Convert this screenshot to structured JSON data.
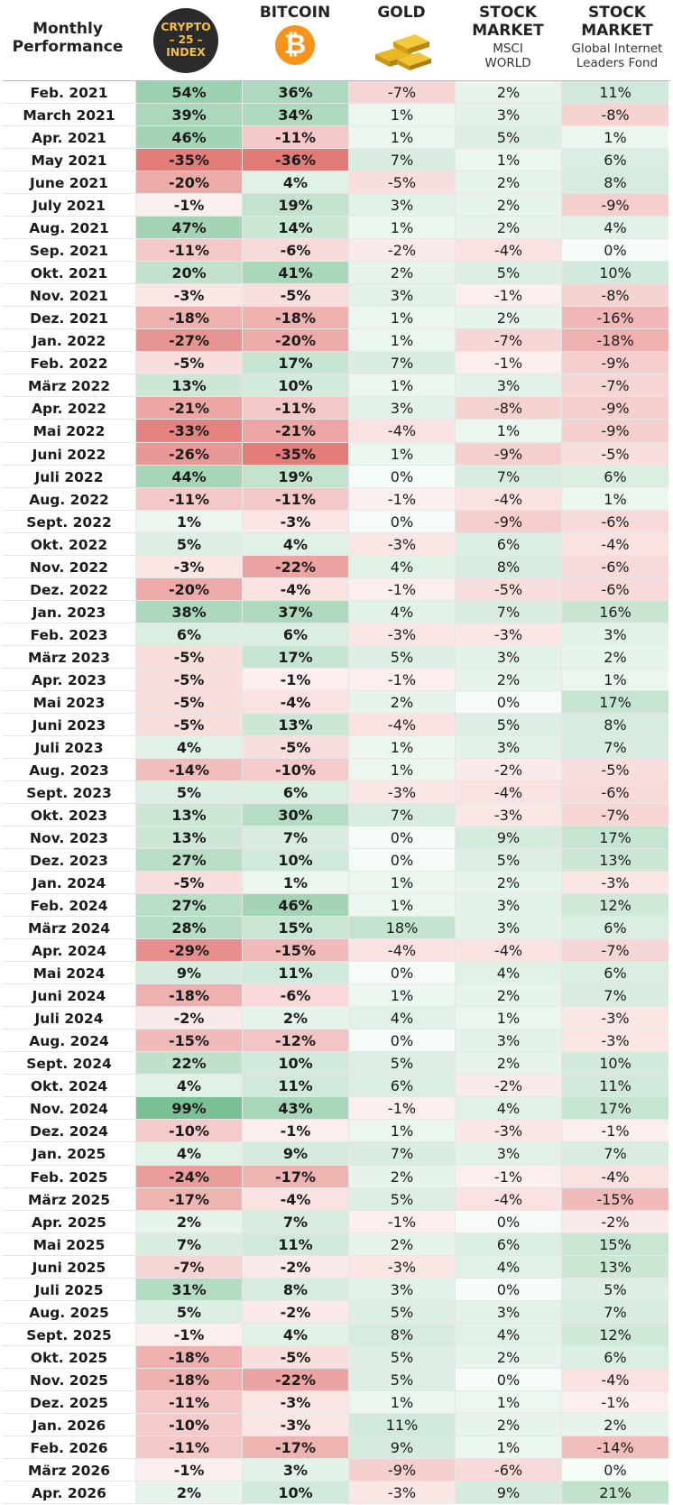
{
  "header": {
    "title_line1": "Monthly",
    "title_line2": "Performance",
    "col1": {
      "badge_top": "CRYPTO",
      "badge_mid": "25",
      "badge_bottom": "INDEX"
    },
    "col2": {
      "title": "BITCOIN"
    },
    "col3": {
      "title": "GOLD"
    },
    "col4": {
      "title1": "STOCK",
      "title2": "MARKET",
      "sub1": "MSCI",
      "sub2": "WORLD"
    },
    "col5": {
      "title1": "STOCK",
      "title2": "MARKET",
      "sub1": "Global Internet",
      "sub2": "Leaders Fond"
    }
  },
  "colors": {
    "positive": "#5fb47f",
    "negative": "#d9534f"
  },
  "chart_data": {
    "type": "table",
    "columns": [
      "Monthly Performance",
      "CRYPTO 25 INDEX",
      "BITCOIN",
      "GOLD",
      "STOCK MARKET MSCI WORLD",
      "STOCK MARKET Global Internet Leaders Fond"
    ],
    "rows": [
      [
        "Feb. 2021",
        54,
        36,
        -7,
        2,
        11
      ],
      [
        "March 2021",
        39,
        34,
        1,
        3,
        -8
      ],
      [
        "Apr. 2021",
        46,
        -11,
        1,
        5,
        1
      ],
      [
        "May 2021",
        -35,
        -36,
        7,
        1,
        6
      ],
      [
        "June 2021",
        -20,
        4,
        -5,
        2,
        8
      ],
      [
        "July 2021",
        -1,
        19,
        3,
        2,
        -9
      ],
      [
        "Aug. 2021",
        47,
        14,
        1,
        2,
        4
      ],
      [
        "Sep. 2021",
        -11,
        -6,
        -2,
        -4,
        0
      ],
      [
        "Okt. 2021",
        20,
        41,
        2,
        5,
        10
      ],
      [
        "Nov. 2021",
        -3,
        -5,
        3,
        -1,
        -8
      ],
      [
        "Dez. 2021",
        -18,
        -18,
        1,
        2,
        -16
      ],
      [
        "Jan. 2022",
        -27,
        -20,
        1,
        -7,
        -18
      ],
      [
        "Feb. 2022",
        -5,
        17,
        7,
        -1,
        -9
      ],
      [
        "März 2022",
        13,
        10,
        1,
        3,
        -7
      ],
      [
        "Apr. 2022",
        -21,
        -11,
        3,
        -8,
        -9
      ],
      [
        "Mai 2022",
        -33,
        -21,
        -4,
        1,
        -9
      ],
      [
        "Juni 2022",
        -26,
        -35,
        1,
        -9,
        -5
      ],
      [
        "Juli 2022",
        44,
        19,
        0,
        7,
        6
      ],
      [
        "Aug. 2022",
        -11,
        -11,
        -1,
        -4,
        1
      ],
      [
        "Sept. 2022",
        1,
        -3,
        0,
        -9,
        -6
      ],
      [
        "Okt. 2022",
        5,
        4,
        -3,
        6,
        -4
      ],
      [
        "Nov. 2022",
        -3,
        -22,
        4,
        8,
        -6
      ],
      [
        "Dez. 2022",
        -20,
        -4,
        -1,
        -5,
        -6
      ],
      [
        "Jan. 2023",
        38,
        37,
        4,
        7,
        16
      ],
      [
        "Feb. 2023",
        6,
        6,
        -3,
        -3,
        3
      ],
      [
        "März 2023",
        -5,
        17,
        5,
        3,
        2
      ],
      [
        "Apr. 2023",
        -5,
        -1,
        -1,
        2,
        1
      ],
      [
        "Mai 2023",
        -5,
        -4,
        2,
        0,
        17
      ],
      [
        "Juni 2023",
        -5,
        13,
        -4,
        5,
        8
      ],
      [
        "Juli 2023",
        4,
        -5,
        1,
        3,
        7
      ],
      [
        "Aug. 2023",
        -14,
        -10,
        1,
        -2,
        -5
      ],
      [
        "Sept. 2023",
        5,
        6,
        -3,
        -4,
        -6
      ],
      [
        "Okt. 2023",
        13,
        30,
        7,
        -3,
        -7
      ],
      [
        "Nov. 2023",
        13,
        7,
        0,
        9,
        17
      ],
      [
        "Dez. 2023",
        27,
        10,
        0,
        5,
        13
      ],
      [
        "Jan. 2024",
        -5,
        1,
        1,
        2,
        -3
      ],
      [
        "Feb. 2024",
        27,
        46,
        1,
        3,
        12
      ],
      [
        "März 2024",
        28,
        15,
        18,
        3,
        6
      ],
      [
        "Apr. 2024",
        -29,
        -15,
        -4,
        -4,
        -7
      ],
      [
        "Mai 2024",
        9,
        11,
        0,
        4,
        6
      ],
      [
        "Juni 2024",
        -18,
        -6,
        1,
        2,
        7
      ],
      [
        "Juli 2024",
        -2,
        2,
        4,
        1,
        -3
      ],
      [
        "Aug. 2024",
        -15,
        -12,
        0,
        3,
        -3
      ],
      [
        "Sept. 2024",
        22,
        10,
        5,
        2,
        10
      ],
      [
        "Okt. 2024",
        4,
        11,
        6,
        -2,
        11
      ],
      [
        "Nov. 2024",
        99,
        43,
        -1,
        4,
        17
      ],
      [
        "Dez. 2024",
        -10,
        -1,
        1,
        -3,
        -1
      ],
      [
        "Jan. 2025",
        4,
        9,
        7,
        3,
        7
      ],
      [
        "Feb. 2025",
        -24,
        -17,
        2,
        -1,
        -4
      ],
      [
        "März 2025",
        -17,
        -4,
        5,
        -4,
        -15
      ],
      [
        "Apr. 2025",
        2,
        7,
        -1,
        0,
        -2
      ],
      [
        "Mai 2025",
        7,
        11,
        2,
        6,
        15
      ],
      [
        "Juni 2025",
        -7,
        -2,
        -3,
        4,
        13
      ],
      [
        "Juli 2025",
        31,
        8,
        3,
        0,
        5
      ],
      [
        "Aug. 2025",
        5,
        -2,
        5,
        3,
        7
      ],
      [
        "Sept. 2025",
        -1,
        4,
        8,
        4,
        12
      ],
      [
        "Okt. 2025",
        -18,
        -5,
        5,
        2,
        6
      ],
      [
        "Nov. 2025",
        -18,
        -22,
        5,
        0,
        -4
      ],
      [
        "Dez. 2025",
        -11,
        -3,
        1,
        1,
        -1
      ],
      [
        "Jan. 2026",
        -10,
        -3,
        11,
        2,
        2
      ],
      [
        "Feb. 2026",
        -11,
        -17,
        9,
        1,
        -14
      ],
      [
        "März 2026",
        -1,
        3,
        -9,
        -6,
        0
      ],
      [
        "Apr. 2026",
        2,
        10,
        -3,
        9,
        21
      ]
    ]
  }
}
